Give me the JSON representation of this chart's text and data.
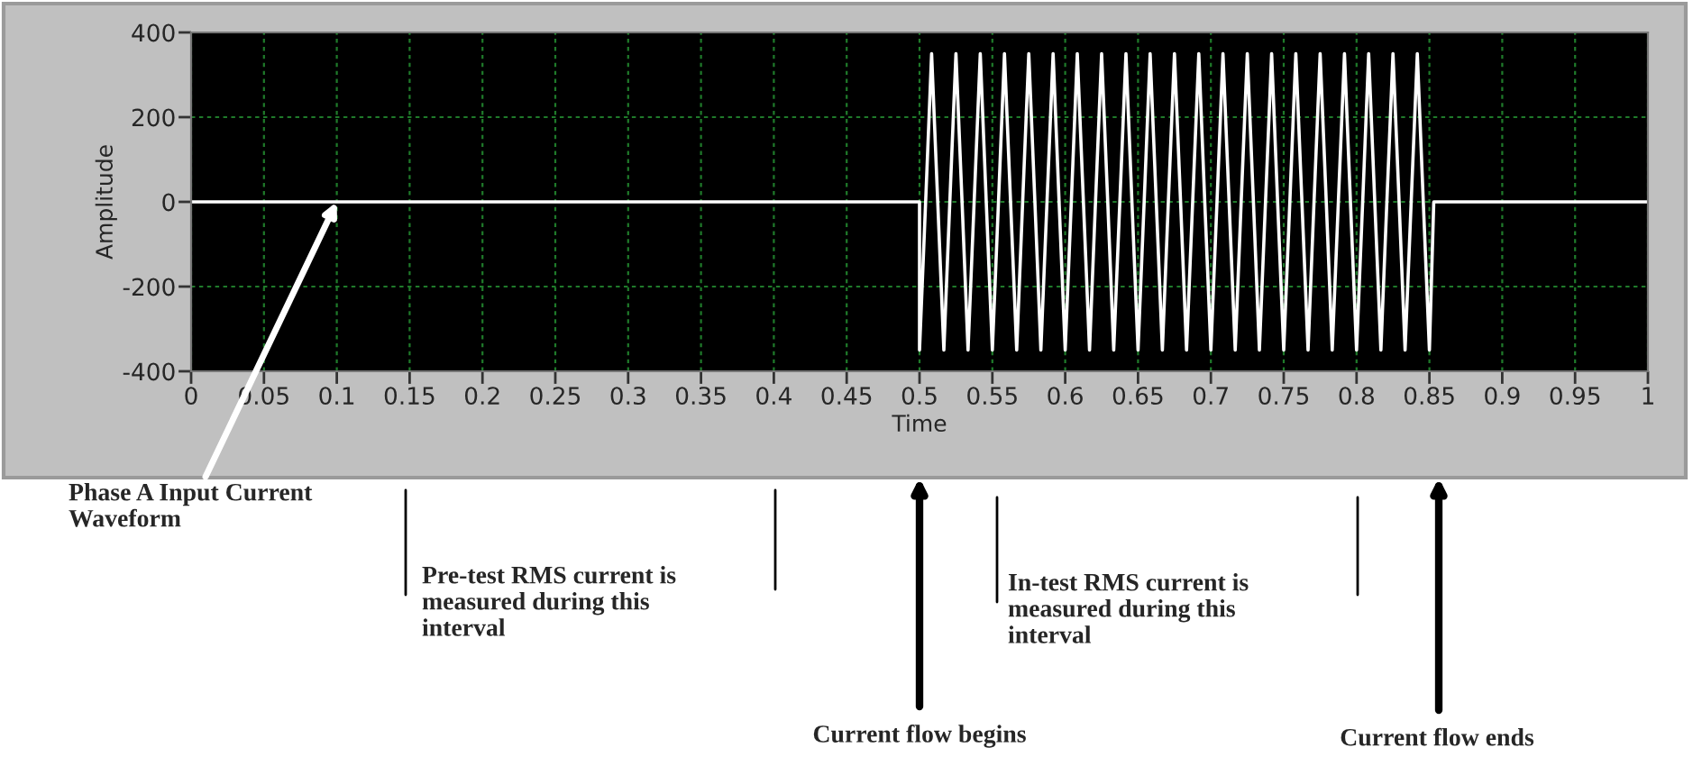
{
  "chart_data": {
    "type": "line",
    "xlabel": "Time",
    "ylabel": "Amplitude",
    "xlim": [
      0,
      1
    ],
    "ylim": [
      -400,
      400
    ],
    "xticks": [
      0,
      0.05,
      0.1,
      0.15,
      0.2,
      0.25,
      0.3,
      0.35,
      0.4,
      0.45,
      0.5,
      0.55,
      0.6,
      0.65,
      0.7,
      0.75,
      0.8,
      0.85,
      0.9,
      0.95,
      1
    ],
    "yticks": [
      -400,
      -200,
      0,
      200,
      400
    ],
    "grid": true,
    "marker": "none",
    "line_style": "solid",
    "series": [
      {
        "color": "#ffffff",
        "x": [
          0,
          0.5,
          0.5,
          0.5042,
          0.5083,
          0.5125,
          0.5167,
          0.5208,
          0.525,
          0.5292,
          0.5333,
          0.5375,
          0.5417,
          0.5458,
          0.55,
          0.5542,
          0.5583,
          0.5625,
          0.5667,
          0.5708,
          0.575,
          0.5792,
          0.5833,
          0.5875,
          0.5917,
          0.5958,
          0.6,
          0.6042,
          0.6083,
          0.6125,
          0.6167,
          0.6208,
          0.625,
          0.6292,
          0.6333,
          0.6375,
          0.6417,
          0.6458,
          0.65,
          0.6542,
          0.6583,
          0.6625,
          0.6667,
          0.6708,
          0.675,
          0.6792,
          0.6833,
          0.6875,
          0.6917,
          0.6958,
          0.7,
          0.7042,
          0.7083,
          0.7125,
          0.7167,
          0.7208,
          0.725,
          0.7292,
          0.7333,
          0.7375,
          0.7417,
          0.7458,
          0.75,
          0.7542,
          0.7583,
          0.7625,
          0.7667,
          0.7708,
          0.775,
          0.7792,
          0.7833,
          0.7875,
          0.7917,
          0.7958,
          0.8,
          0.8042,
          0.8083,
          0.8125,
          0.8167,
          0.8208,
          0.825,
          0.8292,
          0.8333,
          0.8375,
          0.8417,
          0.8458,
          0.85,
          0.853,
          1
        ],
        "values": [
          0,
          0,
          -350,
          0,
          350,
          0,
          -350,
          0,
          350,
          0,
          -350,
          0,
          350,
          0,
          -350,
          0,
          350,
          0,
          -350,
          0,
          350,
          0,
          -350,
          0,
          350,
          0,
          -350,
          0,
          350,
          0,
          -350,
          0,
          350,
          0,
          -350,
          0,
          350,
          0,
          -350,
          0,
          350,
          0,
          -350,
          0,
          350,
          0,
          -350,
          0,
          350,
          0,
          -350,
          0,
          350,
          0,
          -350,
          0,
          350,
          0,
          -350,
          0,
          350,
          0,
          -350,
          0,
          350,
          0,
          -350,
          0,
          350,
          0,
          -350,
          0,
          350,
          0,
          -350,
          0,
          350,
          0,
          -350,
          0,
          350,
          0,
          -350,
          0,
          350,
          0,
          -350,
          0,
          0
        ]
      }
    ],
    "annotations": [
      {
        "text": "Phase A Input Current Waveform",
        "x": 0.1,
        "y": 0
      },
      "Pre-test RMS current is measured during this interval",
      "Current flow begins",
      "In-test RMS current is measured during this interval",
      "Current flow ends"
    ]
  }
}
